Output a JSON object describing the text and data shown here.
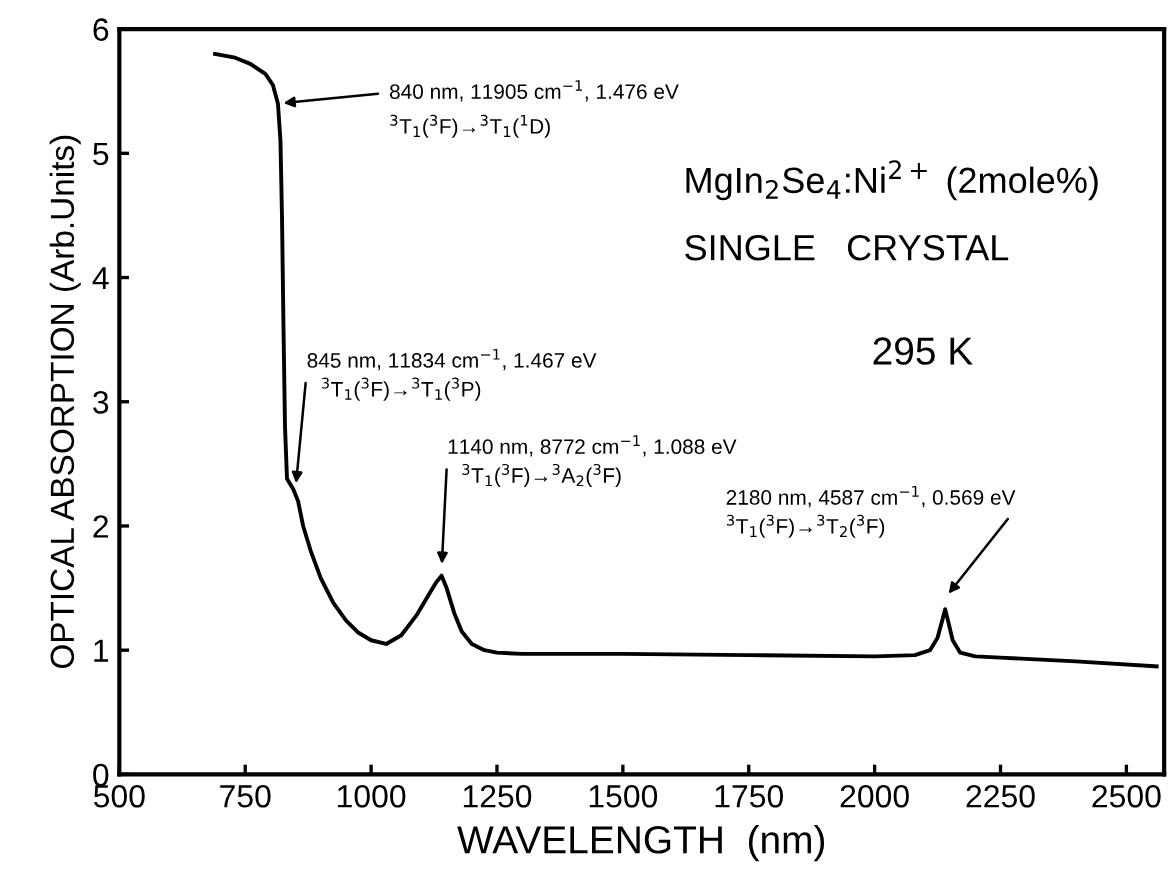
{
  "chart_data": {
    "type": "line",
    "xlabel": "WAVELENGTH  (nm)",
    "ylabel": "OPTICAL ABSORPTION (Arb.Units)",
    "x": [
      690,
      730,
      760,
      790,
      805,
      815,
      820,
      823,
      826,
      829,
      833,
      845,
      855,
      865,
      880,
      900,
      925,
      950,
      975,
      1000,
      1030,
      1060,
      1090,
      1115,
      1130,
      1140,
      1150,
      1165,
      1180,
      1200,
      1225,
      1250,
      1300,
      1400,
      1500,
      1750,
      2000,
      2080,
      2110,
      2125,
      2135,
      2140,
      2145,
      2155,
      2170,
      2200,
      2250,
      2400,
      2560
    ],
    "series": [
      {
        "color": "#000000",
        "values": [
          5.8,
          5.77,
          5.72,
          5.64,
          5.55,
          5.4,
          5.1,
          4.5,
          3.6,
          2.8,
          2.38,
          2.3,
          2.2,
          2.0,
          1.8,
          1.58,
          1.38,
          1.24,
          1.14,
          1.08,
          1.05,
          1.12,
          1.28,
          1.45,
          1.55,
          1.6,
          1.5,
          1.3,
          1.15,
          1.05,
          1.0,
          0.98,
          0.97,
          0.97,
          0.97,
          0.96,
          0.95,
          0.96,
          1.0,
          1.1,
          1.25,
          1.33,
          1.25,
          1.08,
          0.98,
          0.95,
          0.94,
          0.91,
          0.87
        ]
      }
    ],
    "xlim": [
      500,
      2575
    ],
    "ylim": [
      0,
      6
    ],
    "xticks": [
      500,
      750,
      1000,
      1250,
      1500,
      1750,
      2000,
      2250,
      2500
    ],
    "yticks": [
      0,
      1,
      2,
      3,
      4,
      5,
      6
    ],
    "grid": false,
    "marker": "none",
    "line_style": "solid",
    "annotations": [
      {
        "text": "840 nm, 11905 cm$^{−1}$, 1.476 eV",
        "x": 815,
        "y": 5.4
      },
      "$^{3}$T$_{1}$($^{3}$F)→$^{3}$T$_{1}$($^{1}$D)",
      {
        "text": "845 nm, 11834 cm$^{−1}$, 1.467 eV",
        "x": 850,
        "y": 2.3
      },
      "$^{3}$T$_{1}$($^{3}$F)→$^{3}$T$_{1}$($^{3}$P)",
      {
        "text": "1140 nm, 8772 cm$^{−1}$, 1.088 eV",
        "x": 1140,
        "y": 1.65
      },
      "$^{3}$T$_{1}$($^{3}$F)→$^{3}$A$_{2}$($^{3}$F)",
      {
        "text": "2180 nm, 4587 cm$^{−1}$, 0.569 eV",
        "x": 2140,
        "y": 1.42
      },
      "$^{3}$T$_{1}$($^{3}$F)→$^{3}$T$_{2}$($^{3}$F)",
      "MgIn$_{2}$Se$_{4}$:Ni$^{2+}$ (2mole%)",
      "SINGLE   CRYSTAL",
      "295 K"
    ]
  }
}
